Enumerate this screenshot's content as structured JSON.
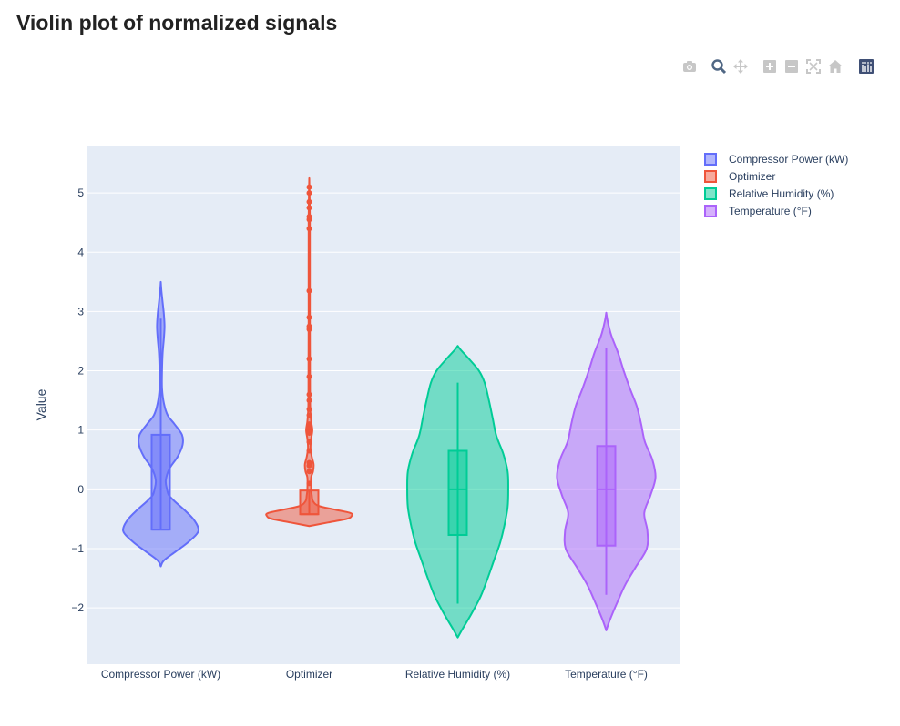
{
  "page": {
    "title": "Violin plot of normalized signals"
  },
  "modebar": {
    "buttons": [
      {
        "name": "camera-icon"
      },
      {
        "name": "zoom-icon"
      },
      {
        "name": "pan-icon"
      },
      {
        "name": "zoom-in-icon"
      },
      {
        "name": "zoom-out-icon"
      },
      {
        "name": "autoscale-icon"
      },
      {
        "name": "home-icon"
      },
      {
        "name": "plotly-logo-icon"
      }
    ]
  },
  "chart_data": {
    "type": "violin",
    "title": "",
    "xlabel": "",
    "ylabel": "Value",
    "ylim": [
      -2.95,
      5.8
    ],
    "yticks": [
      -2,
      -1,
      0,
      1,
      2,
      3,
      4,
      5
    ],
    "ytick_labels": [
      "−2",
      "−1",
      "0",
      "1",
      "2",
      "3",
      "4",
      "5"
    ],
    "categories": [
      "Compressor Power (kW)",
      "Optimizer",
      "Relative Humidity (%)",
      "Temperature (°F)"
    ],
    "grid": true,
    "legend_position": "top-right",
    "series": [
      {
        "name": "Compressor Power (kW)",
        "color": "#636efa",
        "box": {
          "q1": -0.68,
          "median": -0.68,
          "q3": 0.92,
          "whisker_low": -0.68,
          "whisker_high": 2.88
        },
        "density": [
          [
            -1.3,
            0.0
          ],
          [
            -1.2,
            0.05
          ],
          [
            -1.05,
            0.24
          ],
          [
            -0.9,
            0.43
          ],
          [
            -0.75,
            0.58
          ],
          [
            -0.65,
            0.6
          ],
          [
            -0.5,
            0.52
          ],
          [
            -0.35,
            0.38
          ],
          [
            -0.2,
            0.22
          ],
          [
            -0.1,
            0.13
          ],
          [
            0.0,
            0.1
          ],
          [
            0.15,
            0.08
          ],
          [
            0.35,
            0.14
          ],
          [
            0.55,
            0.27
          ],
          [
            0.75,
            0.35
          ],
          [
            0.92,
            0.34
          ],
          [
            1.1,
            0.22
          ],
          [
            1.25,
            0.11
          ],
          [
            1.45,
            0.05
          ],
          [
            1.7,
            0.02
          ],
          [
            2.0,
            0.02
          ],
          [
            2.3,
            0.03
          ],
          [
            2.55,
            0.05
          ],
          [
            2.75,
            0.06
          ],
          [
            2.95,
            0.05
          ],
          [
            3.15,
            0.03
          ],
          [
            3.35,
            0.01
          ],
          [
            3.5,
            0.0
          ]
        ],
        "outliers": []
      },
      {
        "name": "Optimizer",
        "color": "#ef553b",
        "box": {
          "q1": -0.42,
          "median": -0.42,
          "q3": -0.02,
          "whisker_low": -0.42,
          "whisker_high": -0.02
        },
        "density": [
          [
            -0.62,
            0.0
          ],
          [
            -0.56,
            0.3
          ],
          [
            -0.5,
            0.6
          ],
          [
            -0.45,
            0.68
          ],
          [
            -0.4,
            0.66
          ],
          [
            -0.34,
            0.4
          ],
          [
            -0.28,
            0.15
          ],
          [
            -0.2,
            0.06
          ],
          [
            -0.1,
            0.04
          ],
          [
            0.0,
            0.03
          ],
          [
            0.2,
            0.03
          ],
          [
            0.3,
            0.06
          ],
          [
            0.42,
            0.07
          ],
          [
            0.55,
            0.04
          ],
          [
            0.7,
            0.02
          ],
          [
            0.85,
            0.03
          ],
          [
            1.0,
            0.05
          ],
          [
            1.15,
            0.03
          ],
          [
            1.4,
            0.015
          ],
          [
            2.0,
            0.012
          ],
          [
            3.0,
            0.01
          ],
          [
            4.5,
            0.01
          ],
          [
            5.25,
            0.0
          ]
        ],
        "outliers": [
          0.1,
          0.3,
          0.4,
          0.45,
          0.65,
          0.8,
          0.95,
          1.0,
          1.05,
          1.1,
          1.25,
          1.35,
          1.5,
          1.6,
          1.9,
          2.2,
          2.7,
          2.75,
          2.9,
          3.35,
          4.4,
          4.55,
          4.6,
          4.75,
          4.85,
          5.0,
          5.1
        ]
      },
      {
        "name": "Relative Humidity (%)",
        "color": "#00cc96",
        "box": {
          "q1": -0.77,
          "median": 0.0,
          "q3": 0.65,
          "whisker_low": -1.93,
          "whisker_high": 1.8
        },
        "density": [
          [
            -2.5,
            0.0
          ],
          [
            -2.35,
            0.08
          ],
          [
            -2.1,
            0.22
          ],
          [
            -1.8,
            0.37
          ],
          [
            -1.5,
            0.48
          ],
          [
            -1.2,
            0.58
          ],
          [
            -0.9,
            0.68
          ],
          [
            -0.6,
            0.75
          ],
          [
            -0.3,
            0.8
          ],
          [
            0.0,
            0.81
          ],
          [
            0.3,
            0.8
          ],
          [
            0.6,
            0.73
          ],
          [
            0.9,
            0.62
          ],
          [
            1.2,
            0.56
          ],
          [
            1.5,
            0.5
          ],
          [
            1.8,
            0.43
          ],
          [
            2.0,
            0.34
          ],
          [
            2.2,
            0.18
          ],
          [
            2.35,
            0.05
          ],
          [
            2.42,
            0.0
          ]
        ],
        "outliers": []
      },
      {
        "name": "Temperature (°F)",
        "color": "#ab63fa",
        "box": {
          "q1": -0.95,
          "median": 0.0,
          "q3": 0.73,
          "whisker_low": -1.78,
          "whisker_high": 2.38
        },
        "density": [
          [
            -2.38,
            0.0
          ],
          [
            -2.2,
            0.06
          ],
          [
            -1.9,
            0.18
          ],
          [
            -1.6,
            0.31
          ],
          [
            -1.3,
            0.48
          ],
          [
            -1.0,
            0.65
          ],
          [
            -0.7,
            0.66
          ],
          [
            -0.4,
            0.61
          ],
          [
            -0.1,
            0.71
          ],
          [
            0.2,
            0.79
          ],
          [
            0.5,
            0.74
          ],
          [
            0.8,
            0.62
          ],
          [
            1.1,
            0.56
          ],
          [
            1.4,
            0.49
          ],
          [
            1.7,
            0.38
          ],
          [
            2.0,
            0.28
          ],
          [
            2.3,
            0.19
          ],
          [
            2.6,
            0.08
          ],
          [
            2.85,
            0.02
          ],
          [
            2.98,
            0.0
          ]
        ],
        "outliers": []
      }
    ]
  }
}
